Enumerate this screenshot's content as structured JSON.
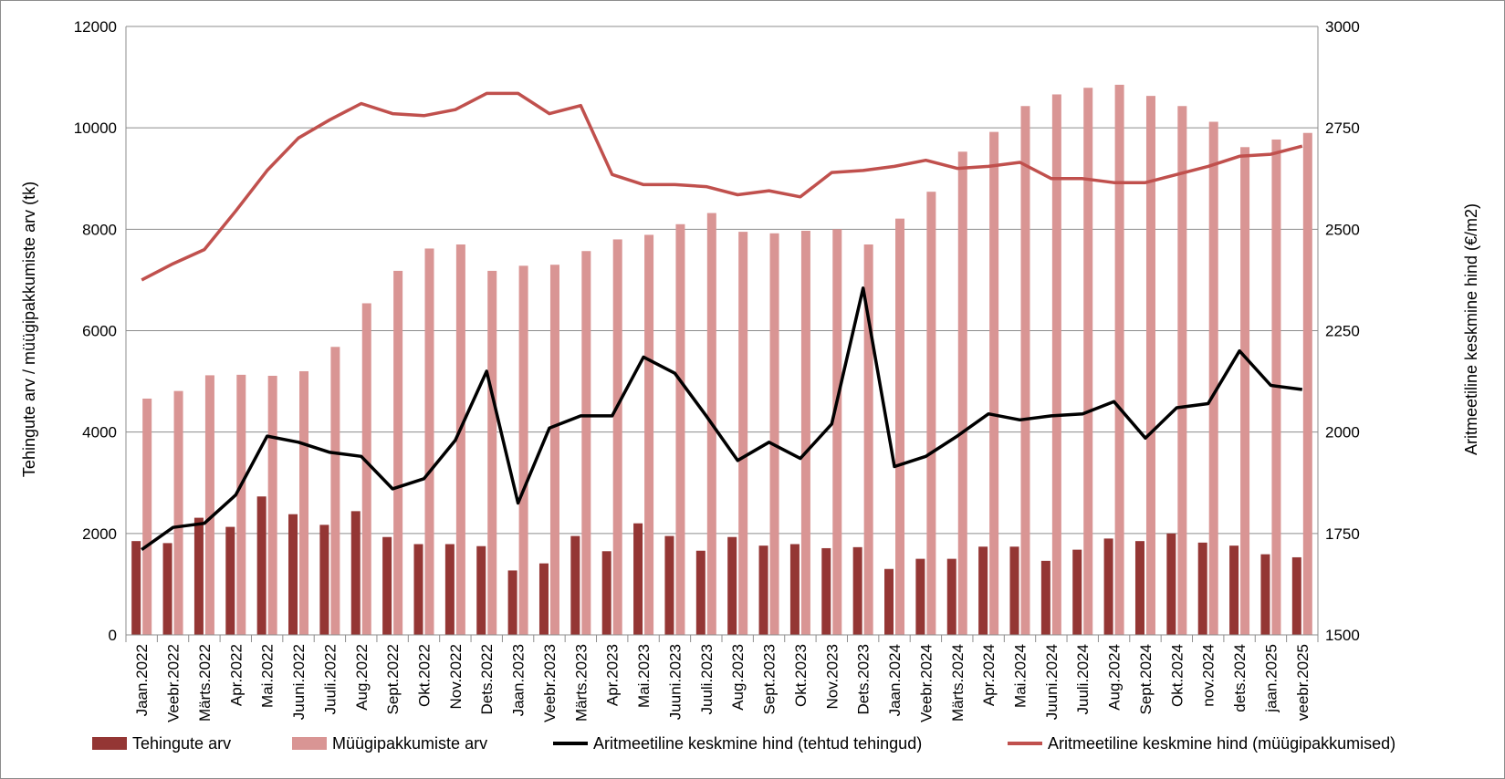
{
  "chart_data": {
    "type": "bar+line",
    "title": "",
    "ylabel_left": "Tehingute arv / müügipakkumiste arv (tk)",
    "ylabel_right": "Aritmeetiline keskmine hind (€/m2)",
    "ylim_left": [
      0,
      12000
    ],
    "yticks_left": [
      0,
      2000,
      4000,
      6000,
      8000,
      10000,
      12000
    ],
    "ylim_right": [
      1500,
      3000
    ],
    "yticks_right": [
      1500,
      1750,
      2000,
      2250,
      2500,
      2750,
      3000
    ],
    "grid": true,
    "legend_position": "bottom",
    "categories": [
      "Jaan.2022",
      "Veebr.2022",
      "Märts.2022",
      "Apr.2022",
      "Mai.2022",
      "Juuni.2022",
      "Juuli.2022",
      "Aug.2022",
      "Sept.2022",
      "Okt.2022",
      "Nov.2022",
      "Dets.2022",
      "Jaan.2023",
      "Veebr.2023",
      "Märts.2023",
      "Apr.2023",
      "Mai.2023",
      "Juuni.2023",
      "Juuli.2023",
      "Aug.2023",
      "Sept.2023",
      "Okt.2023",
      "Nov.2023",
      "Dets.2023",
      "Jaan.2024",
      "Veebr.2024",
      "Märts.2024",
      "Apr.2024",
      "Mai.2024",
      "Juuni.2024",
      "Juuli.2024",
      "Aug.2024",
      "Sept.2024",
      "Okt.2024",
      "nov.2024",
      "dets.2024",
      "jaan.2025",
      "veebr.2025"
    ],
    "series": [
      {
        "name": "Tehingute arv",
        "type": "bar",
        "axis": "left",
        "color": "#943634",
        "values": [
          1850,
          1810,
          2310,
          2130,
          2730,
          2380,
          2170,
          2440,
          1930,
          1790,
          1790,
          1750,
          1270,
          1410,
          1950,
          1650,
          2200,
          1950,
          1660,
          1930,
          1760,
          1790,
          1710,
          1730,
          1300,
          1500,
          1500,
          1740,
          1740,
          1460,
          1680,
          1900,
          1850,
          2000,
          1820,
          1760,
          1590,
          1530
        ]
      },
      {
        "name": "Müügipakkumiste arv",
        "type": "bar",
        "axis": "left",
        "color": "#d99594",
        "values": [
          4660,
          4810,
          5120,
          5130,
          5110,
          5200,
          5680,
          6540,
          7180,
          7620,
          7700,
          7180,
          7280,
          7300,
          7570,
          7800,
          7890,
          8100,
          8320,
          7950,
          7920,
          7970,
          8000,
          7700,
          8210,
          8740,
          9530,
          9920,
          10430,
          10660,
          10790,
          10850,
          10630,
          10430,
          10120,
          9620,
          9770,
          9900
        ]
      },
      {
        "name": "Aritmeetiline keskmine hind (tehtud tehingud)",
        "type": "line",
        "axis": "right",
        "color": "#000000",
        "values": [
          1710,
          1765,
          1775,
          1845,
          1990,
          1975,
          1950,
          1940,
          1860,
          1885,
          1980,
          2150,
          1825,
          2010,
          2040,
          2040,
          2185,
          2145,
          2040,
          1930,
          1975,
          1935,
          2020,
          2355,
          1915,
          1940,
          1990,
          2045,
          2030,
          2040,
          2045,
          2075,
          1985,
          2060,
          2070,
          2200,
          2115,
          2105
        ]
      },
      {
        "name": "Aritmeetiline keskmine hind (müügipakkumised)",
        "type": "line",
        "axis": "right",
        "color": "#c0504d",
        "values": [
          2375,
          2415,
          2450,
          2545,
          2645,
          2725,
          2770,
          2810,
          2785,
          2780,
          2795,
          2835,
          2835,
          2785,
          2805,
          2635,
          2610,
          2610,
          2605,
          2585,
          2595,
          2580,
          2640,
          2645,
          2655,
          2670,
          2650,
          2655,
          2665,
          2625,
          2625,
          2615,
          2615,
          2635,
          2655,
          2680,
          2685,
          2705
        ]
      }
    ]
  }
}
